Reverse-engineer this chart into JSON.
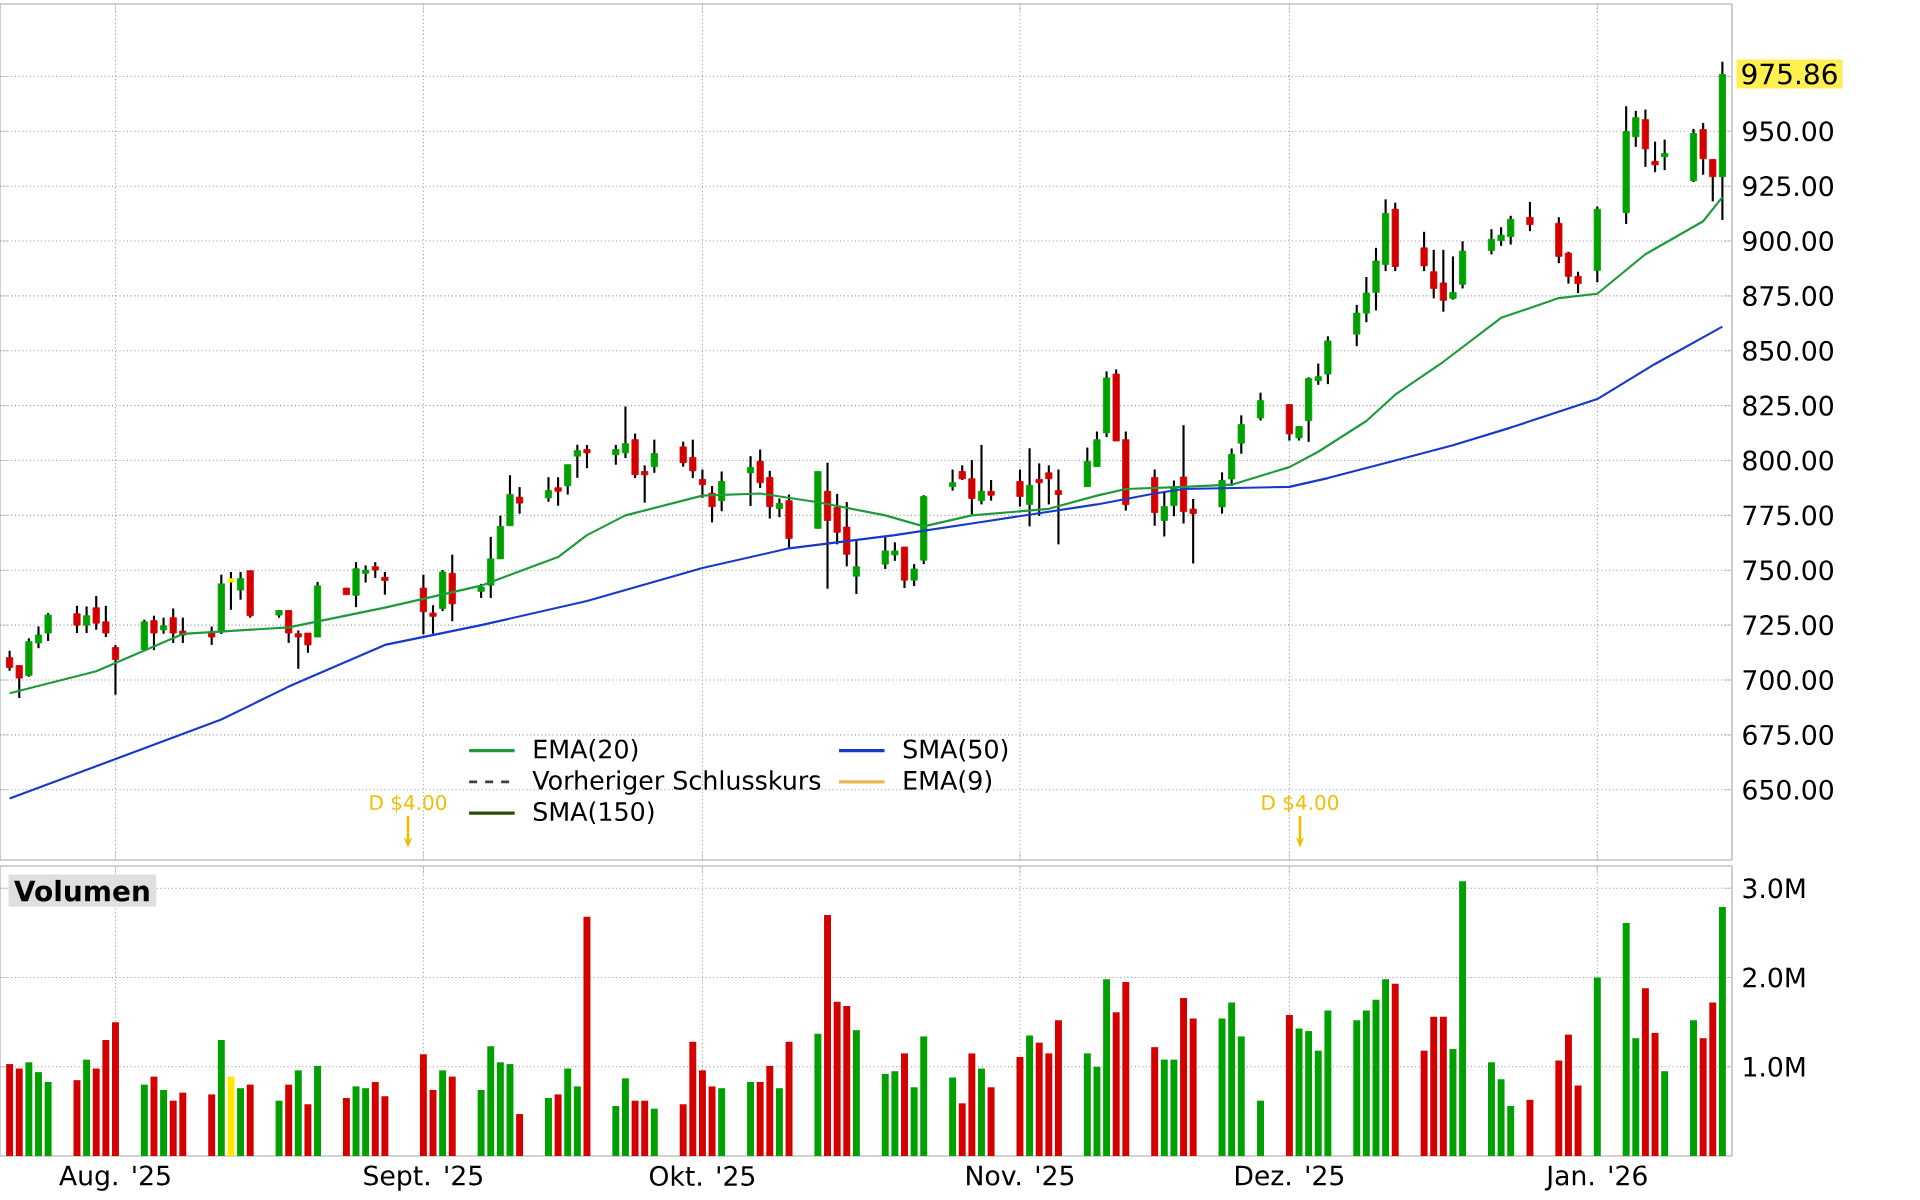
{
  "chart_data": [
    {
      "type": "candlestick",
      "x": [
        "2025-07-21",
        "2025-07-22",
        "2025-07-23",
        "2025-07-24",
        "2025-07-25",
        "2025-07-28",
        "2025-07-29",
        "2025-07-30",
        "2025-07-31",
        "2025-08-01",
        "2025-08-04",
        "2025-08-05",
        "2025-08-06",
        "2025-08-07",
        "2025-08-08",
        "2025-08-11",
        "2025-08-12",
        "2025-08-13",
        "2025-08-14",
        "2025-08-15",
        "2025-08-18",
        "2025-08-19",
        "2025-08-20",
        "2025-08-21",
        "2025-08-22",
        "2025-08-25",
        "2025-08-26",
        "2025-08-27",
        "2025-08-28",
        "2025-08-29",
        "2025-09-02",
        "2025-09-03",
        "2025-09-04",
        "2025-09-05",
        "2025-09-08",
        "2025-09-09",
        "2025-09-10",
        "2025-09-11",
        "2025-09-12",
        "2025-09-15",
        "2025-09-16",
        "2025-09-17",
        "2025-09-18",
        "2025-09-19",
        "2025-09-22",
        "2025-09-23",
        "2025-09-24",
        "2025-09-25",
        "2025-09-26",
        "2025-09-29",
        "2025-09-30",
        "2025-10-01",
        "2025-10-02",
        "2025-10-03",
        "2025-10-06",
        "2025-10-07",
        "2025-10-08",
        "2025-10-09",
        "2025-10-10",
        "2025-10-13",
        "2025-10-14",
        "2025-10-15",
        "2025-10-16",
        "2025-10-17",
        "2025-10-20",
        "2025-10-21",
        "2025-10-22",
        "2025-10-23",
        "2025-10-24",
        "2025-10-27",
        "2025-10-28",
        "2025-10-29",
        "2025-10-30",
        "2025-10-31",
        "2025-11-03",
        "2025-11-04",
        "2025-11-05",
        "2025-11-06",
        "2025-11-07",
        "2025-11-10",
        "2025-11-11",
        "2025-11-12",
        "2025-11-13",
        "2025-11-14",
        "2025-11-17",
        "2025-11-18",
        "2025-11-19",
        "2025-11-20",
        "2025-11-21",
        "2025-11-24",
        "2025-11-25",
        "2025-11-26",
        "2025-11-28",
        "2025-12-01",
        "2025-12-02",
        "2025-12-03",
        "2025-12-04",
        "2025-12-05",
        "2025-12-08",
        "2025-12-09",
        "2025-12-10",
        "2025-12-11",
        "2025-12-12",
        "2025-12-15",
        "2025-12-16",
        "2025-12-17",
        "2025-12-18",
        "2025-12-19",
        "2025-12-22",
        "2025-12-23",
        "2025-12-24",
        "2025-12-26",
        "2025-12-29",
        "2025-12-30",
        "2025-12-31",
        "2026-01-02",
        "2026-01-05",
        "2026-01-06",
        "2026-01-07",
        "2026-01-08",
        "2026-01-09",
        "2026-01-12",
        "2026-01-13",
        "2026-01-14",
        "2026-01-15"
      ],
      "ohlc": [
        [
          710.2,
          713.3,
          704.2,
          705.7
        ],
        [
          706.6,
          706.6,
          691.8,
          700.9
        ],
        [
          702.1,
          719.0,
          701.5,
          717.5
        ],
        [
          716.9,
          724.4,
          714.5,
          720.5
        ],
        [
          721.4,
          730.5,
          717.8,
          729.6
        ],
        [
          730.2,
          733.8,
          721.4,
          725.0
        ],
        [
          725.0,
          733.5,
          721.4,
          729.3
        ],
        [
          732.9,
          738.3,
          722.9,
          725.9
        ],
        [
          726.5,
          733.8,
          719.6,
          721.4
        ],
        [
          714.8,
          716.0,
          693.3,
          709.3
        ],
        [
          713.9,
          727.5,
          713.3,
          726.5
        ],
        [
          727.1,
          729.3,
          713.6,
          721.4
        ],
        [
          722.9,
          728.4,
          721.1,
          724.7
        ],
        [
          728.4,
          732.6,
          716.9,
          721.4
        ],
        [
          722.3,
          728.4,
          716.9,
          720.5
        ],
        [
          721.4,
          724.4,
          716.0,
          719.6
        ],
        [
          722.0,
          748.0,
          721.0,
          743.8
        ],
        [
          745.4,
          749.2,
          732.0,
          745.4
        ],
        [
          741.0,
          749.2,
          736.6,
          746.2
        ],
        [
          749.8,
          749.8,
          728.4,
          729.3
        ],
        [
          729.6,
          731.7,
          728.4,
          731.7
        ],
        [
          731.7,
          731.7,
          716.9,
          721.4
        ],
        [
          721.1,
          722.6,
          705.1,
          719.6
        ],
        [
          721.4,
          721.4,
          712.4,
          716.0
        ],
        [
          719.6,
          744.7,
          719.6,
          742.9
        ],
        [
          741.9,
          741.9,
          738.9,
          738.9
        ],
        [
          738.6,
          753.7,
          733.2,
          750.7
        ],
        [
          748.6,
          752.2,
          744.4,
          750.1
        ],
        [
          751.6,
          753.7,
          746.5,
          750.1
        ],
        [
          746.8,
          749.2,
          738.9,
          745.3
        ],
        [
          741.9,
          748.0,
          720.8,
          731.1
        ],
        [
          730.5,
          734.1,
          721.1,
          729.0
        ],
        [
          732.6,
          750.1,
          731.4,
          749.2
        ],
        [
          748.6,
          757.1,
          726.8,
          734.7
        ],
        [
          740.4,
          743.8,
          737.4,
          742.3
        ],
        [
          743.2,
          765.2,
          737.4,
          755.2
        ],
        [
          755.2,
          774.9,
          755.2,
          770.0
        ],
        [
          770.3,
          793.3,
          770.3,
          784.5
        ],
        [
          783.3,
          787.9,
          775.8,
          780.6
        ],
        [
          783.0,
          792.4,
          781.2,
          786.3
        ],
        [
          787.6,
          792.4,
          779.4,
          786.0
        ],
        [
          788.5,
          798.1,
          784.5,
          798.1
        ],
        [
          802.0,
          807.2,
          792.1,
          804.5
        ],
        [
          805.0,
          807.1,
          796.5,
          803.5
        ],
        [
          802.6,
          807.1,
          798.1,
          805.0
        ],
        [
          803.5,
          824.6,
          801.1,
          807.7
        ],
        [
          809.5,
          812.3,
          792.0,
          793.5
        ],
        [
          795.0,
          797.8,
          780.8,
          793.5
        ],
        [
          797.2,
          809.5,
          794.4,
          803.2
        ],
        [
          806.2,
          808.6,
          797.2,
          799.0
        ],
        [
          801.4,
          809.5,
          792.0,
          795.3
        ],
        [
          791.4,
          795.9,
          783.0,
          789.0
        ],
        [
          785.1,
          788.4,
          771.8,
          779.0
        ],
        [
          781.7,
          795.0,
          776.9,
          790.5
        ],
        [
          794.4,
          802.0,
          779.3,
          796.8
        ],
        [
          799.6,
          805.0,
          787.5,
          789.9
        ],
        [
          792.3,
          795.3,
          773.6,
          779.0
        ],
        [
          778.1,
          782.7,
          774.2,
          780.5
        ],
        [
          781.7,
          784.5,
          760.3,
          764.5
        ],
        [
          769.1,
          795.0,
          769.1,
          795.0
        ],
        [
          786.0,
          799.0,
          741.6,
          772.7
        ],
        [
          778.7,
          784.8,
          761.8,
          767.3
        ],
        [
          769.7,
          781.1,
          751.8,
          757.3
        ],
        [
          747.3,
          763.3,
          739.2,
          751.6
        ],
        [
          752.8,
          765.1,
          750.6,
          758.8
        ],
        [
          757.0,
          762.7,
          754.3,
          758.8
        ],
        [
          760.6,
          760.6,
          741.9,
          745.5
        ],
        [
          745.5,
          752.8,
          742.8,
          750.6
        ],
        [
          754.6,
          784.2,
          752.8,
          783.6
        ],
        [
          788.1,
          795.9,
          786.3,
          789.9
        ],
        [
          795.0,
          797.8,
          791.1,
          791.7
        ],
        [
          791.7,
          800.2,
          775.4,
          782.7
        ],
        [
          781.7,
          807.1,
          780.0,
          786.0
        ],
        [
          786.0,
          791.1,
          781.7,
          784.2
        ],
        [
          790.5,
          795.9,
          779.0,
          783.6
        ],
        [
          780.0,
          805.6,
          770.0,
          788.7
        ],
        [
          791.4,
          798.7,
          774.8,
          789.9
        ],
        [
          794.4,
          797.8,
          780.0,
          791.7
        ],
        [
          786.3,
          795.9,
          761.8,
          784.5
        ],
        [
          788.1,
          805.9,
          788.1,
          799.6
        ],
        [
          797.2,
          813.2,
          797.2,
          809.5
        ],
        [
          812.6,
          840.6,
          810.7,
          837.6
        ],
        [
          839.4,
          841.5,
          808.9,
          808.9
        ],
        [
          809.5,
          813.2,
          777.2,
          779.9
        ],
        [
          792.3,
          795.9,
          770.3,
          776.3
        ],
        [
          772.7,
          785.4,
          765.4,
          779.0
        ],
        [
          779.5,
          790.9,
          774.6,
          787.9
        ],
        [
          792.5,
          816.1,
          771.3,
          776.7
        ],
        [
          777.9,
          782.5,
          753.1,
          775.8
        ],
        [
          778.9,
          794.6,
          775.8,
          790.9
        ],
        [
          791.6,
          805.5,
          788.5,
          802.8
        ],
        [
          807.9,
          820.6,
          803.1,
          816.4
        ],
        [
          819.4,
          830.9,
          818.2,
          827.3
        ],
        [
          825.5,
          825.5,
          809.1,
          812.1
        ],
        [
          810.3,
          815.5,
          809.1,
          815.5
        ],
        [
          818.2,
          837.9,
          808.5,
          837.3
        ],
        [
          836.4,
          844.2,
          834.5,
          838.2
        ],
        [
          839.4,
          856.6,
          834.8,
          854.5
        ],
        [
          857.6,
          870.9,
          852.1,
          867.2
        ],
        [
          867.2,
          883.6,
          863.0,
          876.3
        ],
        [
          876.6,
          896.9,
          868.4,
          890.9
        ],
        [
          889.3,
          919.0,
          886.3,
          912.6
        ],
        [
          914.5,
          917.5,
          886.3,
          888.4
        ],
        [
          896.9,
          904.2,
          886.3,
          888.7
        ],
        [
          886.0,
          896.0,
          873.9,
          878.4
        ],
        [
          880.9,
          896.0,
          867.8,
          873.0
        ],
        [
          873.9,
          893.0,
          873.3,
          876.6
        ],
        [
          880.3,
          899.9,
          878.4,
          895.4
        ],
        [
          895.7,
          905.4,
          893.9,
          900.8
        ],
        [
          900.2,
          906.3,
          897.8,
          902.7
        ],
        [
          902.0,
          911.5,
          898.4,
          909.9
        ],
        [
          910.8,
          917.8,
          904.5,
          907.5
        ],
        [
          908.1,
          910.8,
          889.9,
          893.0
        ],
        [
          894.5,
          895.1,
          880.6,
          883.9
        ],
        [
          883.9,
          886.0,
          876.3,
          880.6
        ],
        [
          886.6,
          915.7,
          881.2,
          914.5
        ],
        [
          912.9,
          961.4,
          907.8,
          949.9
        ],
        [
          947.5,
          959.3,
          942.9,
          956.2
        ],
        [
          955.3,
          959.9,
          933.8,
          942.0
        ],
        [
          936.3,
          945.3,
          931.4,
          934.7
        ],
        [
          938.4,
          946.2,
          932.3,
          939.9
        ],
        [
          927.5,
          951.1,
          926.9,
          949.0
        ],
        [
          950.8,
          953.8,
          930.2,
          937.5
        ],
        [
          937.2,
          937.2,
          918.1,
          929.3
        ],
        [
          929.3,
          981.7,
          909.6,
          975.86
        ]
      ],
      "colors": [
        "#d40000",
        "#d40000",
        "#00a000",
        "#00a000",
        "#00a000",
        "#d40000",
        "#00a000",
        "#d40000",
        "#d40000",
        "#d40000",
        "#00a000",
        "#d40000",
        "#00a000",
        "#d40000",
        "#d40000",
        "#d40000",
        "#00a000",
        "#ffe800",
        "#00a000",
        "#d40000",
        "#00a000",
        "#d40000",
        "#d40000",
        "#d40000",
        "#00a000",
        "#d40000",
        "#00a000",
        "#00a000",
        "#d40000",
        "#d40000",
        "#d40000",
        "#d40000",
        "#00a000",
        "#d40000",
        "#00a000",
        "#00a000",
        "#00a000",
        "#00a000",
        "#d40000",
        "#00a000",
        "#d40000",
        "#00a000",
        "#00a000",
        "#d40000",
        "#00a000",
        "#00a000",
        "#d40000",
        "#d40000",
        "#00a000",
        "#d40000",
        "#d40000",
        "#d40000",
        "#d40000",
        "#00a000",
        "#00a000",
        "#d40000",
        "#d40000",
        "#00a000",
        "#d40000",
        "#00a000",
        "#d40000",
        "#d40000",
        "#d40000",
        "#00a000",
        "#00a000",
        "#00a000",
        "#d40000",
        "#00a000",
        "#00a000",
        "#00a000",
        "#d40000",
        "#d40000",
        "#00a000",
        "#d40000",
        "#d40000",
        "#00a000",
        "#d40000",
        "#d40000",
        "#d40000",
        "#00a000",
        "#00a000",
        "#00a000",
        "#d40000",
        "#d40000",
        "#d40000",
        "#00a000",
        "#00a000",
        "#d40000",
        "#d40000",
        "#00a000",
        "#00a000",
        "#00a000",
        "#00a000",
        "#d40000",
        "#00a000",
        "#00a000",
        "#00a000",
        "#00a000",
        "#00a000",
        "#00a000",
        "#00a000",
        "#00a000",
        "#d40000",
        "#d40000",
        "#d40000",
        "#d40000",
        "#00a000",
        "#00a000",
        "#00a000",
        "#00a000",
        "#00a000",
        "#d40000",
        "#d40000",
        "#d40000",
        "#d40000",
        "#00a000",
        "#00a000",
        "#00a000",
        "#d40000",
        "#d40000",
        "#00a000",
        "#00a000",
        "#d40000",
        "#d40000",
        "#00a000"
      ],
      "series": [
        {
          "type": "line",
          "name": "EMA(20)",
          "color": "#1e9a3c",
          "x": [
            "2025-07-21",
            "2025-07-30",
            "2025-08-08",
            "2025-08-19",
            "2025-08-29",
            "2025-09-08",
            "2025-09-16",
            "2025-09-19",
            "2025-09-23",
            "2025-10-01",
            "2025-10-07",
            "2025-10-13",
            "2025-10-20",
            "2025-10-24",
            "2025-10-29",
            "2025-11-06",
            "2025-11-11",
            "2025-11-14",
            "2025-11-20",
            "2025-11-25",
            "2025-12-01",
            "2025-12-04",
            "2025-12-09",
            "2025-12-12",
            "2025-12-17",
            "2025-12-23",
            "2025-12-29",
            "2026-01-02",
            "2026-01-07",
            "2026-01-13",
            "2026-01-15"
          ],
          "values": [
            694,
            704,
            721,
            724,
            733,
            743,
            756,
            766,
            775,
            784,
            785,
            781,
            775,
            770,
            775,
            778,
            784,
            787,
            788,
            789,
            797,
            804,
            818,
            830,
            845,
            865,
            874,
            876,
            894,
            909,
            920
          ]
        },
        {
          "type": "line",
          "name": "SMA(50)",
          "color": "#1838c8",
          "x": [
            "2025-07-21",
            "2025-08-12",
            "2025-08-19",
            "2025-08-29",
            "2025-09-08",
            "2025-09-19",
            "2025-10-01",
            "2025-10-10",
            "2025-10-21",
            "2025-10-30",
            "2025-11-11",
            "2025-11-17",
            "2025-11-20",
            "2025-12-01",
            "2025-12-05",
            "2025-12-12",
            "2025-12-18",
            "2025-12-24",
            "2026-01-02",
            "2026-01-08",
            "2026-01-15"
          ],
          "values": [
            646,
            682,
            697,
            716,
            725,
            736,
            751,
            760,
            766,
            772,
            780,
            785,
            787,
            788,
            792,
            800,
            807,
            815,
            828,
            844,
            861
          ]
        }
      ],
      "xlim": [
        "2025-07-20",
        "2026-01-16"
      ],
      "ylim": [
        618,
        1008
      ],
      "yticks": [
        {
          "value": 650,
          "label": "650.00"
        },
        {
          "value": 675,
          "label": "675.00"
        },
        {
          "value": 700,
          "label": "700.00"
        },
        {
          "value": 725,
          "label": "725.00"
        },
        {
          "value": 750,
          "label": "750.00"
        },
        {
          "value": 775,
          "label": "775.00"
        },
        {
          "value": 800,
          "label": "800.00"
        },
        {
          "value": 825,
          "label": "825.00"
        },
        {
          "value": 850,
          "label": "850.00"
        },
        {
          "value": 875,
          "label": "875.00"
        },
        {
          "value": 900,
          "label": "900.00"
        },
        {
          "value": 925,
          "label": "925.00"
        },
        {
          "value": 950,
          "label": "950.00"
        },
        {
          "value": 975,
          "label": null
        }
      ],
      "xticks": [
        {
          "value": "2025-08-01",
          "label": null
        },
        {
          "value": "2025-09-02",
          "label": null
        },
        {
          "value": "2025-10-01",
          "label": null
        },
        {
          "value": "2025-11-03",
          "label": null
        },
        {
          "value": "2025-12-01",
          "label": null
        },
        {
          "value": "2026-01-02",
          "label": null
        }
      ],
      "tick_labels": "y",
      "grid": true,
      "legend": "bottom left",
      "annotations": [
        "Vorheriger Schlusskurs",
        "EMA(9)",
        "SMA(150)",
        "D $4.00",
        "D $4.00",
        "975.86"
      ]
    },
    {
      "type": "bar",
      "title": "Volumen",
      "x": [
        "2025-07-21",
        "2025-07-22",
        "2025-07-23",
        "2025-07-24",
        "2025-07-25",
        "2025-07-28",
        "2025-07-29",
        "2025-07-30",
        "2025-07-31",
        "2025-08-01",
        "2025-08-04",
        "2025-08-05",
        "2025-08-06",
        "2025-08-07",
        "2025-08-08",
        "2025-08-11",
        "2025-08-12",
        "2025-08-13",
        "2025-08-14",
        "2025-08-15",
        "2025-08-18",
        "2025-08-19",
        "2025-08-20",
        "2025-08-21",
        "2025-08-22",
        "2025-08-25",
        "2025-08-26",
        "2025-08-27",
        "2025-08-28",
        "2025-08-29",
        "2025-09-02",
        "2025-09-03",
        "2025-09-04",
        "2025-09-05",
        "2025-09-08",
        "2025-09-09",
        "2025-09-10",
        "2025-09-11",
        "2025-09-12",
        "2025-09-15",
        "2025-09-16",
        "2025-09-17",
        "2025-09-18",
        "2025-09-19",
        "2025-09-22",
        "2025-09-23",
        "2025-09-24",
        "2025-09-25",
        "2025-09-26",
        "2025-09-29",
        "2025-09-30",
        "2025-10-01",
        "2025-10-02",
        "2025-10-03",
        "2025-10-06",
        "2025-10-07",
        "2025-10-08",
        "2025-10-09",
        "2025-10-10",
        "2025-10-13",
        "2025-10-14",
        "2025-10-15",
        "2025-10-16",
        "2025-10-17",
        "2025-10-20",
        "2025-10-21",
        "2025-10-22",
        "2025-10-23",
        "2025-10-24",
        "2025-10-27",
        "2025-10-28",
        "2025-10-29",
        "2025-10-30",
        "2025-10-31",
        "2025-11-03",
        "2025-11-04",
        "2025-11-05",
        "2025-11-06",
        "2025-11-07",
        "2025-11-10",
        "2025-11-11",
        "2025-11-12",
        "2025-11-13",
        "2025-11-14",
        "2025-11-17",
        "2025-11-18",
        "2025-11-19",
        "2025-11-20",
        "2025-11-21",
        "2025-11-24",
        "2025-11-25",
        "2025-11-26",
        "2025-11-28",
        "2025-12-01",
        "2025-12-02",
        "2025-12-03",
        "2025-12-04",
        "2025-12-05",
        "2025-12-08",
        "2025-12-09",
        "2025-12-10",
        "2025-12-11",
        "2025-12-12",
        "2025-12-15",
        "2025-12-16",
        "2025-12-17",
        "2025-12-18",
        "2025-12-19",
        "2025-12-22",
        "2025-12-23",
        "2025-12-24",
        "2025-12-26",
        "2025-12-29",
        "2025-12-30",
        "2025-12-31",
        "2026-01-02",
        "2026-01-05",
        "2026-01-06",
        "2026-01-07",
        "2026-01-08",
        "2026-01-09",
        "2026-01-12",
        "2026-01-13",
        "2026-01-14",
        "2026-01-15"
      ],
      "values": [
        1.03,
        0.98,
        1.05,
        0.94,
        0.83,
        0.85,
        1.08,
        0.98,
        1.3,
        1.5,
        0.8,
        0.89,
        0.74,
        0.62,
        0.71,
        0.69,
        1.3,
        0.89,
        0.76,
        0.8,
        0.62,
        0.8,
        0.96,
        0.58,
        1.01,
        0.65,
        0.78,
        0.76,
        0.83,
        0.67,
        1.14,
        0.74,
        0.96,
        0.89,
        0.74,
        1.23,
        1.05,
        1.03,
        0.47,
        0.65,
        0.69,
        0.98,
        0.78,
        2.68,
        0.56,
        0.87,
        0.62,
        0.62,
        0.53,
        0.58,
        1.28,
        0.96,
        0.78,
        0.76,
        0.83,
        0.83,
        1.01,
        0.76,
        1.28,
        1.37,
        2.7,
        1.73,
        1.68,
        1.41,
        0.92,
        0.95,
        1.15,
        0.77,
        1.34,
        0.88,
        0.59,
        1.15,
        0.98,
        0.77,
        1.11,
        1.35,
        1.27,
        1.15,
        1.52,
        1.15,
        1.0,
        1.98,
        1.61,
        1.95,
        1.22,
        1.08,
        1.08,
        1.77,
        1.54,
        1.54,
        1.72,
        1.34,
        0.62,
        1.58,
        1.43,
        1.4,
        1.18,
        1.63,
        1.52,
        1.63,
        1.75,
        1.98,
        1.93,
        1.18,
        1.56,
        1.56,
        1.2,
        3.08,
        1.05,
        0.86,
        0.56,
        0.63,
        1.07,
        1.36,
        0.79,
        2.0,
        2.61,
        1.32,
        1.88,
        1.38,
        0.95,
        1.52,
        1.32,
        1.72,
        2.79
      ],
      "colors": [
        "#d40000",
        "#d40000",
        "#00a000",
        "#00a000",
        "#00a000",
        "#d40000",
        "#00a000",
        "#d40000",
        "#d40000",
        "#d40000",
        "#00a000",
        "#d40000",
        "#00a000",
        "#d40000",
        "#d40000",
        "#d40000",
        "#00a000",
        "#ffe800",
        "#00a000",
        "#d40000",
        "#00a000",
        "#d40000",
        "#00a000",
        "#d40000",
        "#00a000",
        "#d40000",
        "#00a000",
        "#00a000",
        "#d40000",
        "#d40000",
        "#d40000",
        "#d40000",
        "#00a000",
        "#d40000",
        "#00a000",
        "#00a000",
        "#00a000",
        "#00a000",
        "#d40000",
        "#00a000",
        "#d40000",
        "#00a000",
        "#00a000",
        "#d40000",
        "#00a000",
        "#00a000",
        "#d40000",
        "#d40000",
        "#00a000",
        "#d40000",
        "#d40000",
        "#d40000",
        "#d40000",
        "#00a000",
        "#00a000",
        "#d40000",
        "#d40000",
        "#00a000",
        "#d40000",
        "#00a000",
        "#d40000",
        "#d40000",
        "#d40000",
        "#00a000",
        "#00a000",
        "#00a000",
        "#d40000",
        "#00a000",
        "#00a000",
        "#00a000",
        "#d40000",
        "#d40000",
        "#00a000",
        "#d40000",
        "#d40000",
        "#00a000",
        "#d40000",
        "#d40000",
        "#d40000",
        "#00a000",
        "#00a000",
        "#00a000",
        "#d40000",
        "#d40000",
        "#d40000",
        "#00a000",
        "#00a000",
        "#d40000",
        "#d40000",
        "#00a000",
        "#00a000",
        "#00a000",
        "#00a000",
        "#d40000",
        "#00a000",
        "#00a000",
        "#00a000",
        "#00a000",
        "#00a000",
        "#00a000",
        "#00a000",
        "#00a000",
        "#d40000",
        "#d40000",
        "#d40000",
        "#d40000",
        "#00a000",
        "#00a000",
        "#00a000",
        "#00a000",
        "#00a000",
        "#d40000",
        "#d40000",
        "#d40000",
        "#d40000",
        "#00a000",
        "#00a000",
        "#00a000",
        "#d40000",
        "#d40000",
        "#00a000",
        "#00a000",
        "#d40000",
        "#d40000",
        "#00a000"
      ],
      "xlim": [
        "2025-07-20",
        "2026-01-16"
      ],
      "ylim": [
        0,
        3.25
      ],
      "yticks": [
        {
          "value": 1,
          "label": "1.0M"
        },
        {
          "value": 2,
          "label": "2.0M"
        },
        {
          "value": 3,
          "label": "3.0M"
        }
      ],
      "xticks": [
        {
          "value": "2025-08-01",
          "label": "Aug. '25"
        },
        {
          "value": "2025-09-02",
          "label": "Sept. '25"
        },
        {
          "value": "2025-10-01",
          "label": "Okt. '25"
        },
        {
          "value": "2025-11-03",
          "label": "Nov. '25"
        },
        {
          "value": "2025-12-01",
          "label": "Dez. '25"
        },
        {
          "value": "2026-01-02",
          "label": "Jan. '26"
        }
      ],
      "grid": true
    }
  ]
}
